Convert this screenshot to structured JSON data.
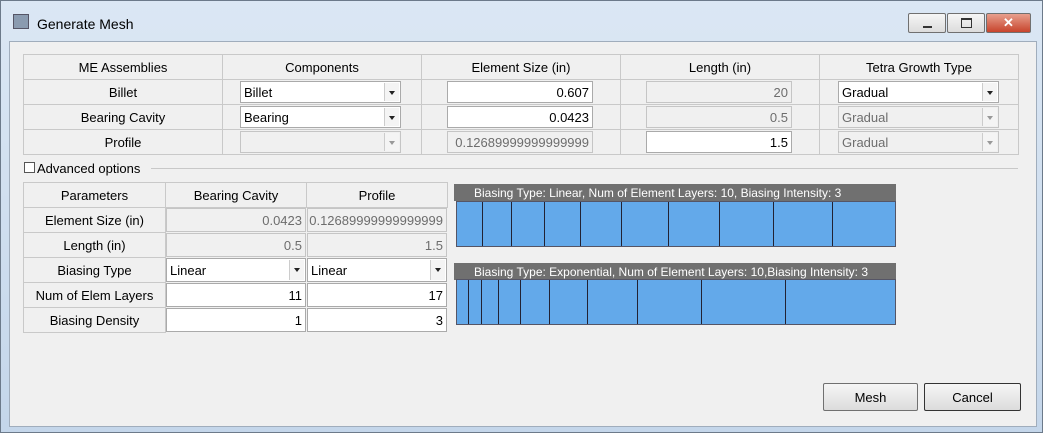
{
  "window": {
    "title": "Generate Mesh"
  },
  "assemblies_table": {
    "columns": [
      "ME Assemblies",
      "Components",
      "Element Size (in)",
      "Length (in)",
      "Tetra Growth Type"
    ],
    "rows": [
      {
        "assembly": "Billet",
        "component": "Billet",
        "element_size": "0.607",
        "length": "20",
        "tetra_growth_type": "Gradual"
      },
      {
        "assembly": "Bearing Cavity",
        "component": "Bearing",
        "element_size": "0.0423",
        "length": "0.5",
        "tetra_growth_type": "Gradual"
      },
      {
        "assembly": "Profile",
        "element_size": "0.12689999999999999",
        "length": "1.5",
        "tetra_growth_type": "Gradual"
      }
    ]
  },
  "advanced_options": {
    "label": "Advanced options",
    "columns": [
      "Parameters",
      "Bearing Cavity",
      "Profile"
    ],
    "rows": [
      [
        "Element Size (in)",
        "0.0423",
        "0.12689999999999999"
      ],
      [
        "Length (in)",
        "0.5",
        "1.5"
      ],
      [
        "Biasing Type",
        "Linear",
        "Linear"
      ],
      [
        "Num of Elem Layers",
        "11",
        "17"
      ],
      [
        "Biasing Density",
        "1",
        "3"
      ]
    ]
  },
  "previews": [
    {
      "caption": "Biasing Type: Linear, Num of Element Layers: 10, Biasing Intensity: 3"
    },
    {
      "caption": "Biasing Type: Exponential, Num of Element Layers: 10,Biasing Intensity: 3"
    }
  ],
  "buttons": [
    "Mesh",
    "Cancel"
  ]
}
